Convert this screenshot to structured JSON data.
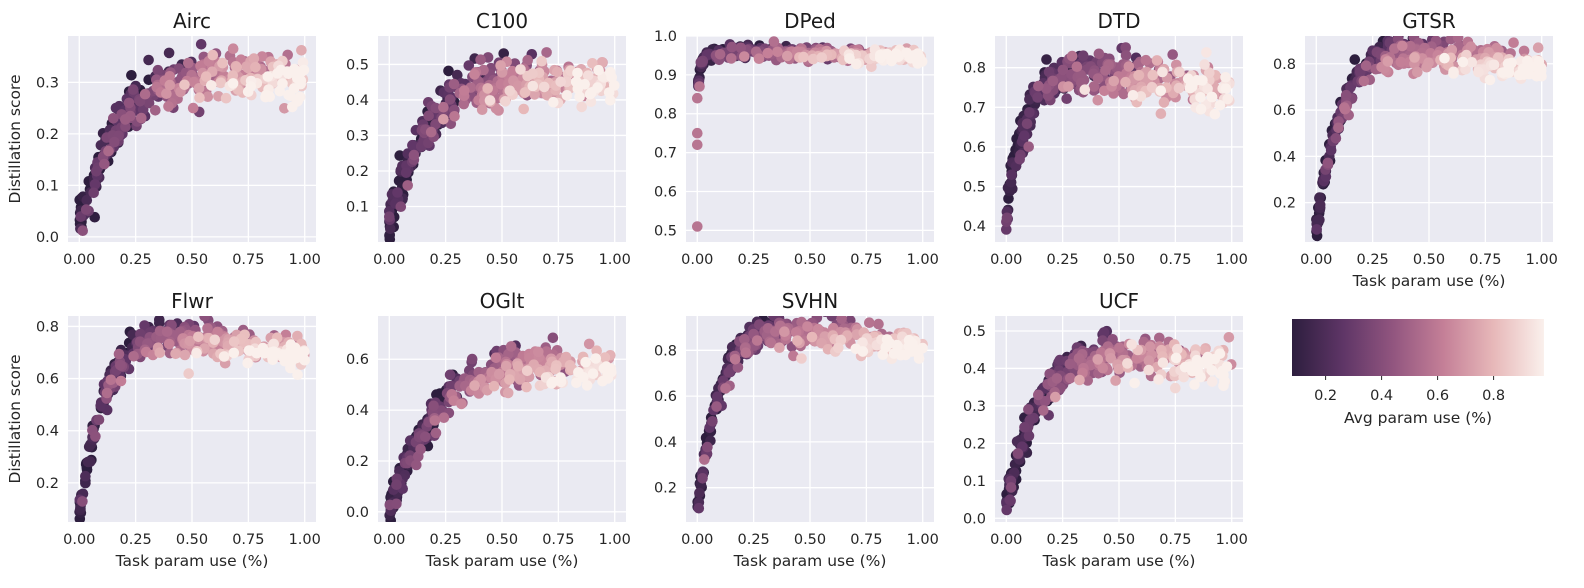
{
  "figure": {
    "shared_xlabel": "Task param use (%)",
    "shared_ylabel": "Distillation score"
  },
  "colorbar": {
    "label": "Avg param use (%)",
    "ticks": [
      "0.2",
      "0.4",
      "0.6",
      "0.8"
    ],
    "tick_values": [
      0.2,
      0.4,
      0.6,
      0.8
    ],
    "range": [
      0.08,
      0.98
    ],
    "colors": [
      "#2d1e3e",
      "#5e3566",
      "#91557f",
      "#c47f97",
      "#e7b8b9",
      "#faf0ec"
    ]
  },
  "style": {
    "plot_background": "#eaeaf2",
    "grid_color": "#ffffff",
    "text_color": "#262626"
  },
  "chart_data": [
    {
      "type": "scatter",
      "title": "Airc",
      "xlabel": "",
      "ylabel": "Distillation score",
      "xlim": [
        -0.05,
        1.05
      ],
      "ylim": [
        -0.01,
        0.39
      ],
      "xticks": [
        "0.00",
        "0.25",
        "0.50",
        "0.75",
        "1.00"
      ],
      "xtick_values": [
        0,
        0.25,
        0.5,
        0.75,
        1.0
      ],
      "yticks": [
        "0.0",
        "0.1",
        "0.2",
        "0.3"
      ],
      "ytick_values": [
        0,
        0.1,
        0.2,
        0.3
      ],
      "grid": true,
      "trend": {
        "y0": 0.03,
        "ymax": 0.34,
        "k": 4.5,
        "spread": 0.02
      },
      "sample_points": [
        [
          0.0,
          0.03
        ],
        [
          0.05,
          0.09
        ],
        [
          0.1,
          0.14
        ],
        [
          0.25,
          0.21
        ],
        [
          0.5,
          0.28
        ],
        [
          0.75,
          0.31
        ],
        [
          1.0,
          0.33
        ]
      ]
    },
    {
      "type": "scatter",
      "title": "C100",
      "xlabel": "",
      "ylabel": "",
      "xlim": [
        -0.05,
        1.05
      ],
      "ylim": [
        0.0,
        0.58
      ],
      "xticks": [
        "0.00",
        "0.25",
        "0.50",
        "0.75",
        "1.00"
      ],
      "xtick_values": [
        0,
        0.25,
        0.5,
        0.75,
        1.0
      ],
      "yticks": [
        "0.1",
        "0.2",
        "0.3",
        "0.4",
        "0.5"
      ],
      "ytick_values": [
        0.1,
        0.2,
        0.3,
        0.4,
        0.5
      ],
      "grid": true,
      "trend": {
        "y0": 0.05,
        "ymax": 0.48,
        "k": 5.5,
        "spread": 0.03
      },
      "sample_points": [
        [
          0.0,
          0.05
        ],
        [
          0.05,
          0.14
        ],
        [
          0.1,
          0.22
        ],
        [
          0.25,
          0.35
        ],
        [
          0.5,
          0.42
        ],
        [
          0.75,
          0.45
        ],
        [
          1.0,
          0.46
        ]
      ]
    },
    {
      "type": "scatter",
      "title": "DPed",
      "xlabel": "",
      "ylabel": "",
      "xlim": [
        -0.05,
        1.05
      ],
      "ylim": [
        0.47,
        1.0
      ],
      "xticks": [
        "0.00",
        "0.25",
        "0.50",
        "0.75",
        "1.00"
      ],
      "xtick_values": [
        0,
        0.25,
        0.5,
        0.75,
        1.0
      ],
      "yticks": [
        "0.5",
        "0.6",
        "0.7",
        "0.8",
        "0.9",
        "1.0"
      ],
      "ytick_values": [
        0.5,
        0.6,
        0.7,
        0.8,
        0.9,
        1.0
      ],
      "grid": true,
      "trend": {
        "y0": 0.85,
        "ymax": 0.955,
        "k": 60,
        "spread": 0.008
      },
      "outliers": [
        [
          0.0,
          0.51
        ],
        [
          0.0,
          0.72
        ],
        [
          0.0,
          0.75
        ],
        [
          0.0,
          0.84
        ],
        [
          0.01,
          0.87
        ]
      ],
      "sample_points": [
        [
          0.02,
          0.93
        ],
        [
          0.25,
          0.94
        ],
        [
          0.5,
          0.95
        ],
        [
          0.75,
          0.955
        ],
        [
          1.0,
          0.955
        ]
      ]
    },
    {
      "type": "scatter",
      "title": "DTD",
      "xlabel": "",
      "ylabel": "",
      "xlim": [
        -0.05,
        1.05
      ],
      "ylim": [
        0.36,
        0.88
      ],
      "xticks": [
        "0.00",
        "0.25",
        "0.50",
        "0.75",
        "1.00"
      ],
      "xtick_values": [
        0,
        0.25,
        0.5,
        0.75,
        1.0
      ],
      "yticks": [
        "0.4",
        "0.5",
        "0.6",
        "0.7",
        "0.8"
      ],
      "ytick_values": [
        0.4,
        0.5,
        0.6,
        0.7,
        0.8
      ],
      "grid": true,
      "trend": {
        "y0": 0.42,
        "ymax": 0.78,
        "k": 12,
        "spread": 0.025
      },
      "sample_points": [
        [
          0.0,
          0.42
        ],
        [
          0.05,
          0.6
        ],
        [
          0.1,
          0.68
        ],
        [
          0.25,
          0.74
        ],
        [
          0.5,
          0.77
        ],
        [
          0.75,
          0.78
        ],
        [
          1.0,
          0.78
        ]
      ]
    },
    {
      "type": "scatter",
      "title": "GTSR",
      "xlabel": "Task param use (%)",
      "ylabel": "",
      "xlim": [
        -0.05,
        1.05
      ],
      "ylim": [
        0.03,
        0.92
      ],
      "xticks": [
        "0.00",
        "0.25",
        "0.50",
        "0.75",
        "1.00"
      ],
      "xtick_values": [
        0,
        0.25,
        0.5,
        0.75,
        1.0
      ],
      "yticks": [
        "0.2",
        "0.4",
        "0.6",
        "0.8"
      ],
      "ytick_values": [
        0.2,
        0.4,
        0.6,
        0.8
      ],
      "grid": true,
      "trend": {
        "y0": 0.08,
        "ymax": 0.86,
        "k": 9,
        "spread": 0.025
      },
      "sample_points": [
        [
          0.0,
          0.08
        ],
        [
          0.05,
          0.45
        ],
        [
          0.1,
          0.6
        ],
        [
          0.25,
          0.76
        ],
        [
          0.5,
          0.82
        ],
        [
          0.75,
          0.85
        ],
        [
          1.0,
          0.86
        ]
      ]
    },
    {
      "type": "scatter",
      "title": "Flwr",
      "xlabel": "Task param use (%)",
      "ylabel": "Distillation score",
      "xlim": [
        -0.05,
        1.05
      ],
      "ylim": [
        0.05,
        0.84
      ],
      "xticks": [
        "0.00",
        "0.25",
        "0.50",
        "0.75",
        "1.00"
      ],
      "xtick_values": [
        0,
        0.25,
        0.5,
        0.75,
        1.0
      ],
      "yticks": [
        "0.2",
        "0.4",
        "0.6",
        "0.8"
      ],
      "ytick_values": [
        0.2,
        0.4,
        0.6,
        0.8
      ],
      "grid": true,
      "trend": {
        "y0": 0.08,
        "ymax": 0.76,
        "k": 9,
        "spread": 0.025
      },
      "sample_points": [
        [
          0.0,
          0.08
        ],
        [
          0.05,
          0.4
        ],
        [
          0.1,
          0.52
        ],
        [
          0.25,
          0.66
        ],
        [
          0.5,
          0.72
        ],
        [
          0.75,
          0.75
        ],
        [
          1.0,
          0.76
        ]
      ]
    },
    {
      "type": "scatter",
      "title": "OGlt",
      "xlabel": "Task param use (%)",
      "ylabel": "",
      "xlim": [
        -0.05,
        1.05
      ],
      "ylim": [
        -0.04,
        0.77
      ],
      "xticks": [
        "0.00",
        "0.25",
        "0.50",
        "0.75",
        "1.00"
      ],
      "xtick_values": [
        0,
        0.25,
        0.5,
        0.75,
        1.0
      ],
      "yticks": [
        "0.0",
        "0.2",
        "0.4",
        "0.6"
      ],
      "ytick_values": [
        0,
        0.2,
        0.4,
        0.6
      ],
      "grid": true,
      "trend": {
        "y0": 0.0,
        "ymax": 0.63,
        "k": 4.2,
        "spread": 0.03
      },
      "sample_points": [
        [
          0.0,
          0.0
        ],
        [
          0.05,
          0.13
        ],
        [
          0.1,
          0.22
        ],
        [
          0.25,
          0.42
        ],
        [
          0.5,
          0.55
        ],
        [
          0.75,
          0.6
        ],
        [
          1.0,
          0.62
        ]
      ]
    },
    {
      "type": "scatter",
      "title": "SVHN",
      "xlabel": "Task param use (%)",
      "ylabel": "",
      "xlim": [
        -0.05,
        1.05
      ],
      "ylim": [
        0.05,
        0.95
      ],
      "xticks": [
        "0.00",
        "0.25",
        "0.50",
        "0.75",
        "1.00"
      ],
      "xtick_values": [
        0,
        0.25,
        0.5,
        0.75,
        1.0
      ],
      "yticks": [
        "0.2",
        "0.4",
        "0.6",
        "0.8"
      ],
      "ytick_values": [
        0.2,
        0.4,
        0.6,
        0.8
      ],
      "grid": true,
      "trend": {
        "y0": 0.1,
        "ymax": 0.89,
        "k": 10,
        "spread": 0.025
      },
      "sample_points": [
        [
          0.0,
          0.1
        ],
        [
          0.05,
          0.5
        ],
        [
          0.1,
          0.65
        ],
        [
          0.25,
          0.8
        ],
        [
          0.5,
          0.86
        ],
        [
          0.75,
          0.88
        ],
        [
          1.0,
          0.89
        ]
      ]
    },
    {
      "type": "scatter",
      "title": "UCF",
      "xlabel": "Task param use (%)",
      "ylabel": "",
      "xlim": [
        -0.05,
        1.05
      ],
      "ylim": [
        -0.01,
        0.54
      ],
      "xticks": [
        "0.00",
        "0.25",
        "0.50",
        "0.75",
        "1.00"
      ],
      "xtick_values": [
        0,
        0.25,
        0.5,
        0.75,
        1.0
      ],
      "yticks": [
        "0.0",
        "0.1",
        "0.2",
        "0.3",
        "0.4",
        "0.5"
      ],
      "ytick_values": [
        0,
        0.1,
        0.2,
        0.3,
        0.4,
        0.5
      ],
      "grid": true,
      "trend": {
        "y0": 0.03,
        "ymax": 0.45,
        "k": 7,
        "spread": 0.025
      },
      "sample_points": [
        [
          0.0,
          0.03
        ],
        [
          0.05,
          0.2
        ],
        [
          0.1,
          0.28
        ],
        [
          0.25,
          0.38
        ],
        [
          0.5,
          0.43
        ],
        [
          0.75,
          0.44
        ],
        [
          1.0,
          0.45
        ]
      ]
    }
  ]
}
